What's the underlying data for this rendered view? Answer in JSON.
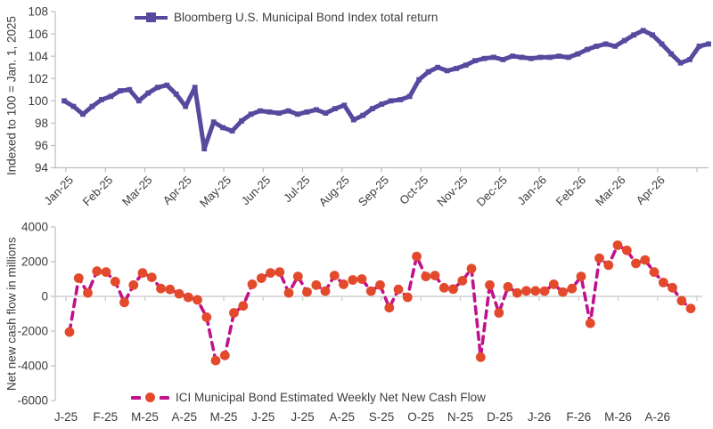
{
  "colors": {
    "text": "#3d3d3d",
    "axis": "#bfbfbf",
    "zero_line": "#d0d0d0",
    "index_line": "#564A9E",
    "cashflow_line": "#C1118C",
    "cashflow_marker": "#E34A2C"
  },
  "chart_data": [
    {
      "type": "line",
      "legend": "Bloomberg U.S. Municipal Bond Index total return",
      "ylabel": "Indexed to  100 = Jan. 1, 2025",
      "ylim": [
        94,
        108
      ],
      "yticks": [
        94,
        96,
        98,
        100,
        102,
        104,
        106,
        108
      ],
      "x_tick_labels": [
        "Jan-25",
        "Feb-25",
        "Mar-25",
        "Apr-25",
        "May-25",
        "Jun-25",
        "Jul-25",
        "Aug-25",
        "Sep-25",
        "Oct-25",
        "Nov-25",
        "Dec-25",
        "Jan-26",
        "Feb-26",
        "Mar-26",
        "Apr-26"
      ],
      "x_resolution": "weekly",
      "grid": false,
      "legend_position": "top",
      "marker": "square",
      "line_color": "#564A9E",
      "values": [
        100.0,
        99.5,
        98.8,
        99.5,
        100.1,
        100.4,
        100.9,
        101.0,
        100.0,
        100.7,
        101.2,
        101.4,
        100.6,
        99.5,
        101.2,
        95.7,
        98.1,
        97.6,
        97.3,
        98.2,
        98.8,
        99.1,
        99.0,
        98.9,
        99.1,
        98.8,
        99.0,
        99.2,
        98.9,
        99.3,
        99.6,
        98.3,
        98.7,
        99.3,
        99.7,
        100.0,
        100.1,
        100.4,
        101.9,
        102.6,
        103.0,
        102.7,
        102.9,
        103.2,
        103.6,
        103.8,
        103.9,
        103.7,
        104.0,
        103.9,
        103.8,
        103.9,
        103.9,
        104.0,
        103.9,
        104.2,
        104.6,
        104.9,
        105.1,
        104.9,
        105.4,
        105.9,
        106.3,
        105.9,
        105.1,
        104.2,
        103.4,
        103.7,
        104.9,
        105.1
      ]
    },
    {
      "type": "line",
      "legend": "ICI Municipal Bond Estimated Weekly Net New Cash Flow",
      "ylabel": "Net new cash flow in millions",
      "ylim": [
        -6000,
        4000
      ],
      "yticks": [
        -6000,
        -4000,
        -2000,
        0,
        2000,
        4000
      ],
      "x_tick_labels": [
        "J-25",
        "F-25",
        "M-25",
        "A-25",
        "M-25",
        "J-25",
        "J-25",
        "A-25",
        "S-25",
        "O-25",
        "N-25",
        "D-25",
        "J-26",
        "F-26",
        "M-26",
        "A-26"
      ],
      "x_resolution": "weekly",
      "grid": "zero-line",
      "legend_position": "bottom",
      "line_style": "dashed",
      "marker": "circle",
      "line_color": "#C1118C",
      "marker_color": "#E34A2C",
      "values": [
        -2050,
        1050,
        200,
        1450,
        1400,
        850,
        -350,
        650,
        1350,
        1100,
        450,
        400,
        150,
        -50,
        -200,
        -1200,
        -3700,
        -3400,
        -950,
        -550,
        700,
        1050,
        1350,
        1400,
        200,
        1150,
        250,
        650,
        300,
        1200,
        700,
        950,
        1000,
        300,
        650,
        -650,
        400,
        -50,
        2300,
        1150,
        1200,
        500,
        420,
        900,
        1600,
        -3500,
        650,
        -950,
        550,
        200,
        320,
        320,
        300,
        700,
        250,
        450,
        1150,
        -1550,
        2200,
        1800,
        2950,
        2650,
        1900,
        2100,
        1400,
        800,
        500,
        -250,
        -700
      ]
    }
  ]
}
